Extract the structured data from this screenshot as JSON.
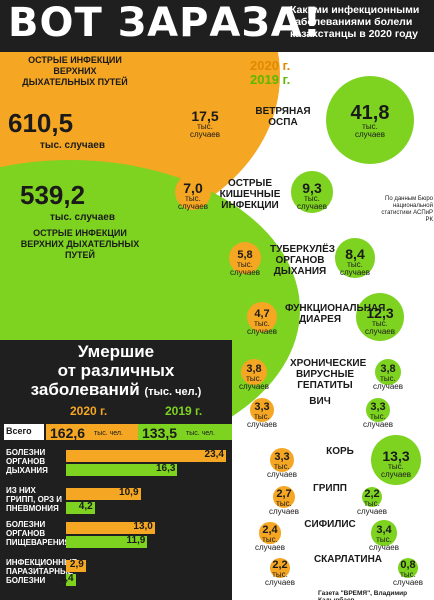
{
  "header": {
    "title": "ВОТ ЗАРАЗА!",
    "subtitle": "Какими инфекционными заболеваниями болели казахстанцы в 2020 году"
  },
  "legend": {
    "year_2020": "2020 г.",
    "year_2019": "2019 г."
  },
  "arvi": {
    "label": "ОСТРЫЕ ИНФЕКЦИИ ВЕРХНИХ ДЫХАТЕЛЬНЫХ ПУТЕЙ",
    "value_2020": "610,5",
    "value_2019": "539,2",
    "unit": "тыс. случаев"
  },
  "source": "По данным Бюро национальной статистики АСПиР РК",
  "colors": {
    "y2020": "#f5a623",
    "y2019": "#7ed321",
    "dark": "#1f1f1f"
  },
  "chart_data": [
    {
      "type": "bubble",
      "title": "Какими инфекционными заболеваниями болели казахстанцы в 2020 году",
      "unit": "тыс. случаев",
      "series": [
        {
          "name": "2020 г.",
          "values": [
            610.5,
            17.5,
            7.0,
            5.8,
            4.7,
            3.8,
            3.3,
            3.3,
            2.7,
            2.4,
            2.2
          ]
        },
        {
          "name": "2019 г.",
          "values": [
            539.2,
            41.8,
            9.3,
            8.4,
            12.3,
            3.8,
            3.3,
            13.3,
            2.2,
            3.4,
            0.8
          ]
        }
      ],
      "categories": [
        "Острые инфекции верхних дыхательных путей",
        "Ветряная оспа",
        "Острые кишечные инфекции",
        "Туберкулёз органов дыхания",
        "Функциональная диарея",
        "Хронические вирусные гепатиты",
        "ВИЧ",
        "Корь",
        "Грипп",
        "Сифилис",
        "Скарлатина"
      ]
    },
    {
      "type": "bar",
      "title": "Умершие от различных заболеваний (тыс. чел.)",
      "unit": "тыс. чел.",
      "totals": {
        "2020": 162.6,
        "2019": 133.5
      },
      "categories": [
        "Болезни органов дыхания",
        "Из них грипп, ОРЗ и пневмония",
        "Болезни органов пищеварения",
        "Инфекционные паразитарные болезни"
      ],
      "series": [
        {
          "name": "2020 г.",
          "values": [
            23.4,
            10.9,
            13.0,
            2.9
          ]
        },
        {
          "name": "2019 г.",
          "values": [
            16.3,
            4.2,
            11.9,
            1.4
          ]
        }
      ]
    }
  ],
  "diseases": [
    {
      "label": "ВЕТРЯНАЯ ОСПА",
      "v2020": "17,5",
      "v2019": "41,8",
      "unit": "тыс. случаев"
    },
    {
      "label": "ОСТРЫЕ КИШЕЧНЫЕ ИНФЕКЦИИ",
      "v2020": "7,0",
      "v2019": "9,3",
      "unit": "тыс. случаев"
    },
    {
      "label": "ТУБЕРКУЛЁЗ ОРГАНОВ ДЫХАНИЯ",
      "v2020": "5,8",
      "v2019": "8,4",
      "unit": "тыс. случаев"
    },
    {
      "label": "ФУНКЦИОНАЛЬНАЯ ДИАРЕЯ",
      "v2020": "4,7",
      "v2019": "12,3",
      "unit": "тыс. случаев"
    },
    {
      "label": "ХРОНИЧЕСКИЕ ВИРУСНЫЕ ГЕПАТИТЫ",
      "v2020": "3,8",
      "v2019": "3,8",
      "unit": "тыс. случаев"
    },
    {
      "label": "ВИЧ",
      "v2020": "3,3",
      "v2019": "3,3",
      "unit": "тыс. случаев"
    },
    {
      "label": "КОРЬ",
      "v2020": "3,3",
      "v2019": "13,3",
      "unit": "тыс. случаев"
    },
    {
      "label": "ГРИПП",
      "v2020": "2,7",
      "v2019": "2,2",
      "unit": "тыс. случаев"
    },
    {
      "label": "СИФИЛИС",
      "v2020": "2,4",
      "v2019": "3,4",
      "unit": "тыс. случаев"
    },
    {
      "label": "СКАРЛАТИНА",
      "v2020": "2,2",
      "v2019": "0,8",
      "unit": "тыс. случаев"
    }
  ],
  "deaths": {
    "title_l1": "Умершие",
    "title_l2": "от различных",
    "title_l3": "заболеваний",
    "title_unit": "(тыс. чел.)",
    "year_2020": "2020 г.",
    "year_2019": "2019 г.",
    "total_label": "Всего",
    "total_2020": "162,6",
    "total_2019": "133,5",
    "unit": "тыс. чел.",
    "rows": [
      {
        "label": "БОЛЕЗНИ ОРГАНОВ ДЫХАНИЯ",
        "v2020": "23,4",
        "v2019": "16,3"
      },
      {
        "label": "ИЗ НИХ ГРИПП, ОРЗ И ПНЕВМОНИЯ",
        "v2020": "10,9",
        "v2019": "4,2"
      },
      {
        "label": "БОЛЕЗНИ ОРГАНОВ ПИЩЕВАРЕНИЯ",
        "v2020": "13,0",
        "v2019": "11,9"
      },
      {
        "label": "ИНФЕКЦИОННЫЕ ПАРАЗИТАРНЫЕ БОЛЕЗНИ",
        "v2020": "2,9",
        "v2019": "1,4"
      }
    ]
  },
  "footer": "Газета \"ВРЕМЯ\", Владимир Кадырбаев"
}
